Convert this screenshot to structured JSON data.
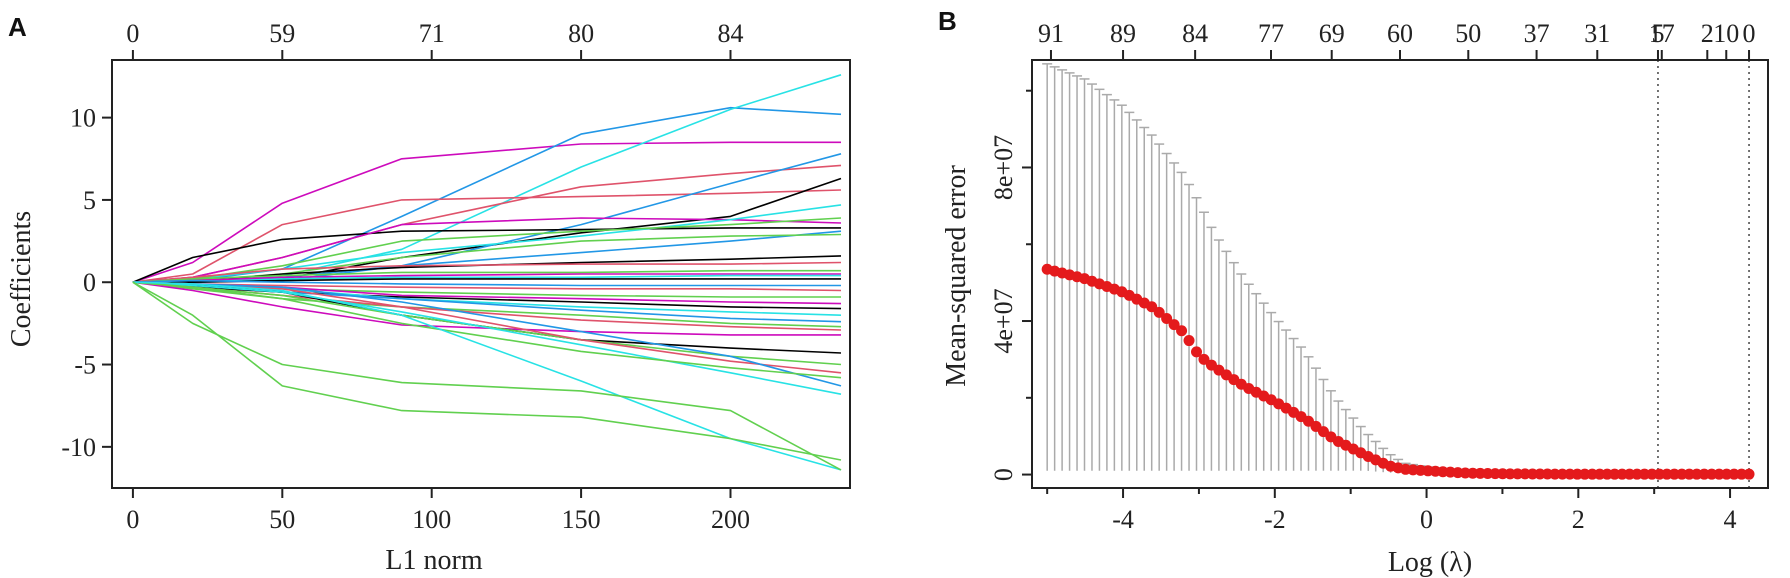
{
  "panels": {
    "a_letter": "A",
    "b_letter": "B"
  },
  "chart_data": [
    {
      "panel": "A",
      "type": "line",
      "xlabel": "L1 norm",
      "ylabel": "Coefficients",
      "xlim": [
        -7,
        240
      ],
      "ylim": [
        -12.5,
        13.5
      ],
      "x_ticks": [
        0,
        50,
        100,
        150,
        200
      ],
      "y_ticks": [
        -10,
        -5,
        0,
        5,
        10
      ],
      "top_axis": {
        "ticks_at_x": [
          0,
          50,
          100,
          150,
          200
        ],
        "labels": [
          "0",
          "59",
          "71",
          "80",
          "84"
        ]
      },
      "colors": [
        "#000000",
        "#df536b",
        "#61d04f",
        "#2297e6",
        "#28e2e5",
        "#cd0bbc"
      ],
      "series_x": [
        0,
        20,
        50,
        90,
        150,
        200,
        237
      ],
      "series": [
        {
          "values": [
            0,
            1.2,
            4.8,
            7.5,
            8.4,
            8.5,
            8.5
          ],
          "color": "#cd0bbc"
        },
        {
          "values": [
            0,
            0.1,
            0.8,
            4.0,
            9.0,
            10.6,
            10.2
          ],
          "color": "#2297e6"
        },
        {
          "values": [
            0,
            0.1,
            0.4,
            2.0,
            7.0,
            10.5,
            12.6
          ],
          "color": "#28e2e5"
        },
        {
          "values": [
            0,
            0.3,
            1.5,
            3.5,
            5.8,
            6.6,
            7.1
          ],
          "color": "#df536b"
        },
        {
          "values": [
            0,
            0.5,
            3.5,
            5.0,
            5.2,
            5.4,
            5.6
          ],
          "color": "#df536b"
        },
        {
          "values": [
            0,
            0.0,
            0.2,
            1.5,
            3.0,
            4.0,
            6.3
          ],
          "color": "#000000"
        },
        {
          "values": [
            0,
            0.0,
            0.1,
            1.0,
            3.5,
            6.0,
            7.8
          ],
          "color": "#2297e6"
        },
        {
          "values": [
            0,
            1.5,
            2.6,
            3.1,
            3.2,
            3.3,
            3.3
          ],
          "color": "#000000"
        },
        {
          "values": [
            0,
            0.3,
            1.5,
            3.5,
            3.9,
            3.8,
            3.6
          ],
          "color": "#cd0bbc"
        },
        {
          "values": [
            0,
            0.2,
            0.8,
            1.8,
            2.8,
            3.8,
            4.7
          ],
          "color": "#28e2e5"
        },
        {
          "values": [
            0,
            0.2,
            1.0,
            2.5,
            3.1,
            3.5,
            3.9
          ],
          "color": "#61d04f"
        },
        {
          "values": [
            0,
            0.0,
            0.3,
            1.0,
            1.8,
            2.5,
            3.1
          ],
          "color": "#2297e6"
        },
        {
          "values": [
            0,
            0.1,
            0.5,
            1.5,
            2.5,
            2.8,
            2.9
          ],
          "color": "#61d04f"
        },
        {
          "values": [
            0,
            0.0,
            0.5,
            0.9,
            1.2,
            1.4,
            1.6
          ],
          "color": "#000000"
        },
        {
          "values": [
            0,
            0.3,
            0.8,
            1.0,
            1.1,
            1.1,
            1.2
          ],
          "color": "#df536b"
        },
        {
          "values": [
            0,
            0.2,
            0.4,
            0.6,
            0.6,
            0.7,
            0.7
          ],
          "color": "#61d04f"
        },
        {
          "values": [
            0,
            0.1,
            0.3,
            0.4,
            0.5,
            0.5,
            0.5
          ],
          "color": "#cd0bbc"
        },
        {
          "values": [
            0,
            0.0,
            0.2,
            0.3,
            0.3,
            0.4,
            0.4
          ],
          "color": "#28e2e5"
        },
        {
          "values": [
            0,
            0.0,
            0.1,
            0.2,
            0.2,
            0.2,
            0.2
          ],
          "color": "#000000"
        },
        {
          "values": [
            0,
            0.1,
            0.0,
            -0.1,
            -0.2,
            -0.2,
            -0.2
          ],
          "color": "#2297e6"
        },
        {
          "values": [
            0,
            -0.1,
            -0.2,
            -0.3,
            -0.4,
            -0.4,
            -0.5
          ],
          "color": "#df536b"
        },
        {
          "values": [
            0,
            -0.2,
            -0.4,
            -0.6,
            -0.8,
            -0.9,
            -0.9
          ],
          "color": "#61d04f"
        },
        {
          "values": [
            0,
            -0.1,
            -0.3,
            -0.8,
            -1.0,
            -1.2,
            -1.3
          ],
          "color": "#cd0bbc"
        },
        {
          "values": [
            0,
            -0.3,
            -0.6,
            -0.9,
            -1.2,
            -1.5,
            -1.6
          ],
          "color": "#000000"
        },
        {
          "values": [
            0,
            -0.2,
            -0.4,
            -1.0,
            -1.5,
            -1.8,
            -2.0
          ],
          "color": "#28e2e5"
        },
        {
          "values": [
            0,
            -0.2,
            -0.6,
            -1.0,
            -1.7,
            -2.2,
            -2.4
          ],
          "color": "#2297e6"
        },
        {
          "values": [
            0,
            -0.4,
            -1.0,
            -1.5,
            -2.0,
            -2.5,
            -2.7
          ],
          "color": "#61d04f"
        },
        {
          "values": [
            0,
            -0.5,
            -1.5,
            -2.6,
            -3.0,
            -3.2,
            -3.2
          ],
          "color": "#cd0bbc"
        },
        {
          "values": [
            0,
            -0.3,
            -0.8,
            -1.5,
            -2.3,
            -2.7,
            -2.9
          ],
          "color": "#df536b"
        },
        {
          "values": [
            0,
            -0.2,
            -0.6,
            -2.0,
            -3.5,
            -4.0,
            -4.3
          ],
          "color": "#000000"
        },
        {
          "values": [
            0,
            -0.3,
            -0.8,
            -2.0,
            -3.5,
            -4.5,
            -5.0
          ],
          "color": "#61d04f"
        },
        {
          "values": [
            0,
            -0.1,
            -0.4,
            -1.5,
            -3.5,
            -4.8,
            -5.5
          ],
          "color": "#df536b"
        },
        {
          "values": [
            0,
            -0.1,
            -0.3,
            -1.2,
            -3.0,
            -4.5,
            -6.3
          ],
          "color": "#2297e6"
        },
        {
          "values": [
            0,
            -0.2,
            -0.6,
            -1.8,
            -3.8,
            -5.5,
            -6.8
          ],
          "color": "#28e2e5"
        },
        {
          "values": [
            0,
            -0.3,
            -1.0,
            -2.5,
            -4.2,
            -5.2,
            -5.8
          ],
          "color": "#61d04f"
        },
        {
          "values": [
            0,
            -0.1,
            -0.5,
            -2.0,
            -6.0,
            -9.5,
            -11.4
          ],
          "color": "#28e2e5"
        },
        {
          "values": [
            0,
            -2.5,
            -5.0,
            -6.1,
            -6.6,
            -7.8,
            -11.4
          ],
          "color": "#61d04f"
        },
        {
          "values": [
            0,
            -2.0,
            -6.3,
            -7.8,
            -8.2,
            -9.5,
            -10.8
          ],
          "color": "#61d04f"
        }
      ]
    },
    {
      "panel": "B",
      "type": "scatter",
      "xlabel": "Log (λ)",
      "ylabel": "Mean-squared error",
      "xlim": [
        -5.2,
        4.5
      ],
      "ylim": [
        -3500000,
        108000000
      ],
      "x_ticks": [
        -4,
        -2,
        0,
        2,
        4
      ],
      "x_tick_labels": [
        "-4",
        "-2",
        "0",
        "2",
        "4"
      ],
      "y_ticks": [
        0,
        40000000,
        80000000
      ],
      "y_tick_labels": [
        "0",
        "4e+07",
        "8e+07"
      ],
      "top_axis": {
        "positions_log_lambda": [
          -4.95,
          -4.0,
          -3.05,
          -2.1,
          -1.25,
          -0.35,
          0.55,
          1.4,
          2.25,
          3.1,
          3.95,
          4.8,
          5.45
        ],
        "labels": [
          "91",
          "89",
          "84",
          "77",
          "69",
          "60",
          "50",
          "37",
          "31",
          "17",
          "10",
          "5",
          "2",
          "0"
        ],
        "label_positions": [
          -4.95,
          -4.0,
          -3.05,
          -2.05,
          -1.25,
          -0.35,
          0.55,
          1.45,
          2.25,
          3.1,
          3.95,
          3.05,
          3.7,
          4.25
        ]
      },
      "vlines": [
        3.05,
        4.25
      ],
      "point_color": "#e41a1c",
      "errorbar_color": "#aaaaaa",
      "curve": {
        "log_lambda": [
          -5.0,
          -4.5,
          -4.0,
          -3.6,
          -3.2,
          -3.0,
          -2.8,
          -2.4,
          -2.0,
          -1.6,
          -1.2,
          -0.8,
          -0.5,
          -0.3,
          0.0,
          0.5,
          1.0,
          2.0,
          3.0,
          4.25
        ],
        "mse": [
          53500000,
          51000000,
          47500000,
          43500000,
          37000000,
          31000000,
          28000000,
          23000000,
          19000000,
          14500000,
          9000000,
          5000000,
          2300000,
          1400000,
          1000000,
          400000,
          200000,
          100000,
          100000,
          100000
        ],
        "upper": [
          107000000,
          103000000,
          96000000,
          88000000,
          78000000,
          71000000,
          63000000,
          51000000,
          41000000,
          32000000,
          20000000,
          11000000,
          5500000,
          3000000,
          2000000,
          800000,
          400000,
          200000,
          150000,
          120000
        ],
        "lower": [
          1000000,
          1000000,
          1000000,
          1000000,
          1000000,
          1000000,
          1000000,
          1000000,
          1000000,
          1000000,
          1000000,
          1000000,
          500000,
          300000,
          200000,
          100000,
          80000,
          50000,
          50000,
          50000
        ]
      }
    }
  ]
}
